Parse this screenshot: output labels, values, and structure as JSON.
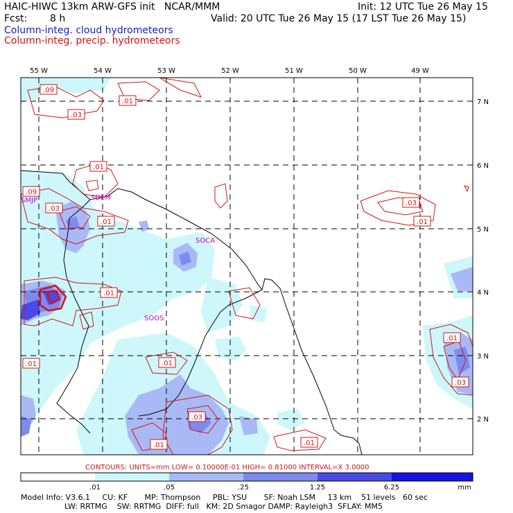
{
  "header": {
    "title": "HAIC-HIWC 13km ARW-GFS init   NCAR/MMM",
    "init": "Init: 12 UTC Tue 26 May 15",
    "fcst_label": "Fcst:",
    "fcst_value": "8 h",
    "valid": "Valid: 20 UTC Tue 26 May 15 (17 LST Tue 26 May 15)",
    "legend_cloud": "Column-integ. cloud hydrometeors",
    "legend_precip": "Column-integ. precip. hydrometeors"
  },
  "colors": {
    "cloud_legend": "#1a1acc",
    "precip_contour": "#d21414",
    "station": "#c800c8",
    "shade_1": "#cdf7fa",
    "shade_2": "#a9b9f5",
    "shade_3": "#7f8aee",
    "shade_4": "#4a4ae6",
    "shade_5": "#1414e0"
  },
  "map": {
    "lon_labels": [
      "55 W",
      "54 W",
      "53 W",
      "52 W",
      "51 W",
      "50 W",
      "49 W"
    ],
    "lat_labels": [
      "7 N",
      "6 N",
      "5 N",
      "4 N",
      "3 N",
      "2 N"
    ],
    "stations": [
      "SMJP",
      "SOCA",
      "SOOS",
      "SDEM"
    ],
    "contour_labels": [
      ".09",
      ".01",
      ".03",
      ".01",
      ".09",
      ".03",
      ".01",
      ".03",
      ".01",
      ".01",
      ".01",
      ".01",
      ".03",
      ".03",
      ".01",
      ".01",
      ".01"
    ]
  },
  "colorbar": {
    "contour_info": "CONTOURS:  UNITS=mm  LOW= 0.10000E-01  HIGH= 0.81000     INTERVAL=X  3.0000",
    "ticks": [
      ".01",
      ".05",
      ".25",
      "1.25",
      "6.25"
    ],
    "unit": "mm"
  },
  "footer": {
    "line1": "Model Info: V3.6.1     CU: KF       MP: Thompson     PBL: YSU       SF: Noah LSM     13 km    51 levels   60 sec",
    "line2": "                  LW: RRTMG    SW: RRTMG  DIFF: full   KM: 2D Smagor DAMP: Rayleigh3  SFLAY: MM5"
  }
}
